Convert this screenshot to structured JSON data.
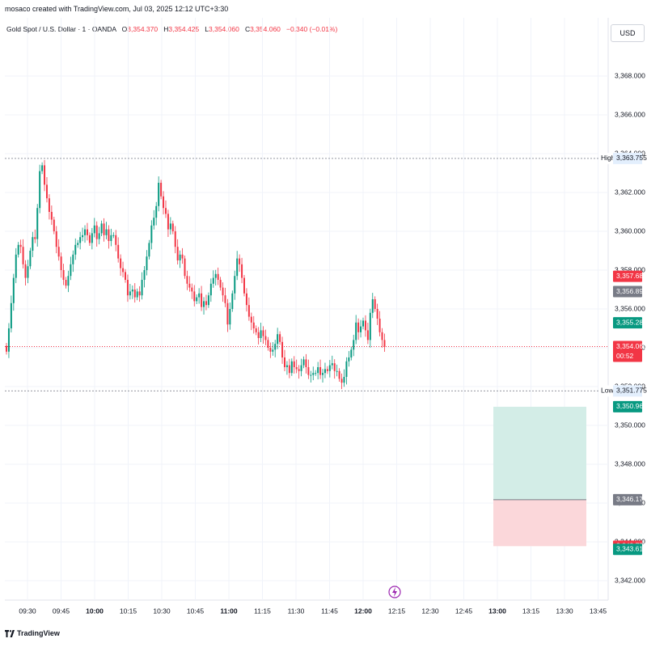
{
  "watermark": "mosaco created with TradingView.com, Jul 03, 2025 12:12 UTC+3:30",
  "legend": {
    "symbol": "Gold Spot / U.S. Dollar · 1 · OANDA",
    "open_label": "O",
    "open": "3,354.370",
    "high_label": "H",
    "high": "3,354.425",
    "low_label": "L",
    "low": "3,354.060",
    "close_label": "C",
    "close": "3,354.060",
    "change": "−0.340 (−0.01%)"
  },
  "currency": "USD",
  "footer_brand": "TradingView",
  "colors": {
    "up": "#089981",
    "down": "#f23645",
    "grid": "#f0f3fa",
    "profit_zone": "#d3ede7",
    "loss_zone": "#fbd7da",
    "neutral_tag": "#787b86"
  },
  "chart_data": {
    "type": "candlestick",
    "x_axis": {
      "tick_labels": [
        "09:30",
        "09:45",
        "10:00",
        "10:15",
        "10:30",
        "10:45",
        "11:00",
        "11:15",
        "11:30",
        "11:45",
        "12:00",
        "12:15",
        "12:30",
        "12:45",
        "13:00",
        "13:15",
        "13:30",
        "13:45"
      ],
      "bold_labels": [
        "10:00",
        "11:00",
        "12:00",
        "13:00"
      ]
    },
    "y_axis": {
      "ylim": [
        3341.0,
        3371.0
      ],
      "tick_labels": [
        "3,342.000",
        "3,344.000",
        "3,346.000",
        "3,348.000",
        "3,350.000",
        "3,352.000",
        "3,354.000",
        "3,356.000",
        "3,358.000",
        "3,360.000",
        "3,362.000",
        "3,364.000",
        "3,366.000",
        "3,368.000"
      ],
      "tick_values": [
        3342,
        3344,
        3346,
        3348,
        3350,
        3352,
        3354,
        3356,
        3358,
        3360,
        3362,
        3364,
        3366,
        3368
      ]
    },
    "closes": [
      3353.8,
      3355.0,
      3356.3,
      3357.6,
      3358.8,
      3359.3,
      3359.2,
      3358.3,
      3357.6,
      3358.2,
      3359.0,
      3359.7,
      3359.6,
      3361.2,
      3363.1,
      3363.4,
      3362.4,
      3361.7,
      3361.0,
      3360.6,
      3360.0,
      3359.2,
      3358.7,
      3358.0,
      3357.5,
      3357.2,
      3357.7,
      3358.3,
      3358.8,
      3359.3,
      3359.4,
      3359.7,
      3359.8,
      3360.1,
      3359.8,
      3359.4,
      3359.9,
      3360.3,
      3359.6,
      3359.9,
      3360.4,
      3359.8,
      3360.1,
      3359.5,
      3359.8,
      3359.8,
      3359.3,
      3358.6,
      3358.1,
      3357.9,
      3357.5,
      3356.7,
      3356.9,
      3357.0,
      3356.6,
      3356.9,
      3356.7,
      3357.5,
      3358.0,
      3358.7,
      3359.4,
      3360.3,
      3360.7,
      3361.3,
      3362.5,
      3361.8,
      3361.2,
      3360.9,
      3360.1,
      3360.4,
      3360.0,
      3359.2,
      3358.5,
      3358.8,
      3358.6,
      3357.7,
      3357.3,
      3357.1,
      3356.9,
      3356.4,
      3356.6,
      3356.8,
      3356.1,
      3356.4,
      3356.2,
      3356.7,
      3357.3,
      3357.6,
      3357.8,
      3357.5,
      3357.1,
      3356.7,
      3356.3,
      3355.2,
      3356.0,
      3356.8,
      3357.7,
      3358.6,
      3358.3,
      3357.6,
      3356.8,
      3356.2,
      3355.6,
      3355.3,
      3355.0,
      3354.8,
      3354.5,
      3354.9,
      3354.6,
      3354.4,
      3354.0,
      3353.8,
      3353.9,
      3354.2,
      3354.7,
      3354.3,
      3353.5,
      3353.0,
      3353.1,
      3352.7,
      3353.3,
      3353.0,
      3352.9,
      3352.8,
      3353.1,
      3353.4,
      3353.0,
      3352.6,
      3352.6,
      3352.7,
      3352.7,
      3353.0,
      3352.6,
      3352.7,
      3352.9,
      3352.8,
      3353.1,
      3353.2,
      3352.8,
      3352.8,
      3352.4,
      3352.2,
      3352.5,
      3353.3,
      3353.5,
      3353.9,
      3354.4,
      3355.3,
      3354.8,
      3355.1,
      3355.4,
      3354.9,
      3354.4,
      3355.8,
      3356.5,
      3356.0,
      3355.5,
      3354.8,
      3354.4,
      3354.06
    ]
  },
  "levels": {
    "high": {
      "label": "High",
      "value": "3,363.755",
      "price": 3363.755
    },
    "low": {
      "label": "Low",
      "value": "3,351.775",
      "price": 3351.775
    },
    "current": {
      "value": "3,354.060",
      "countdown": "00:52",
      "price": 3354.06
    },
    "tp_tag": {
      "value": "3,357.681",
      "price": 3357.681
    },
    "mark1_tag": {
      "value": "3,356.895",
      "price": 3356.895
    },
    "mark2_tag": {
      "value": "3,355.288",
      "price": 3355.288
    }
  },
  "position": {
    "target": {
      "value": "3,350.961",
      "price": 3350.961
    },
    "entry": {
      "value": "3,346.174",
      "price": 3346.174
    },
    "stop": {
      "value": "3,343.778",
      "price": 3343.778
    },
    "stop2": {
      "value": "3,343.615",
      "price": 3343.615
    }
  }
}
